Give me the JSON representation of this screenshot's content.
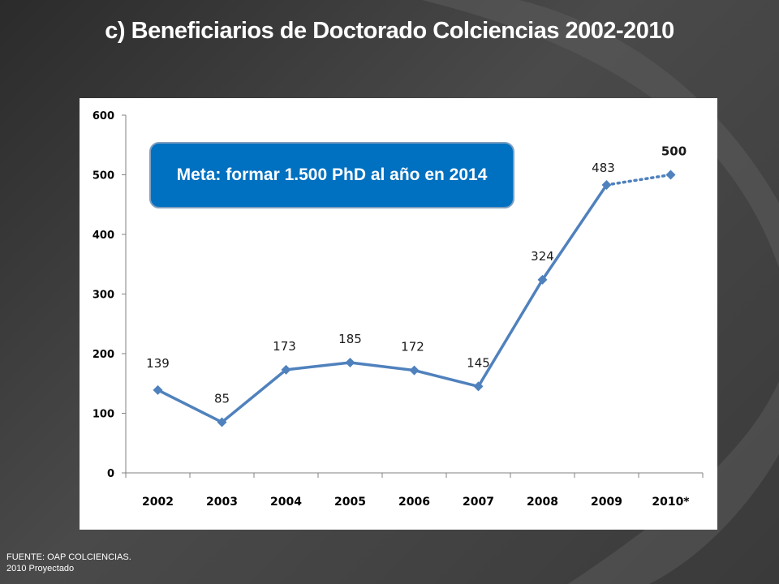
{
  "slide": {
    "title": "c) Beneficiarios de Doctorado Colciencias 2002-2010",
    "callout": "Meta: formar 1.500 PhD al año en 2014",
    "source_line1": "FUENTE: OAP COLCIENCIAS.",
    "source_line2": "2010 Proyectado"
  },
  "chart_data": {
    "type": "line",
    "categories": [
      "2002",
      "2003",
      "2004",
      "2005",
      "2006",
      "2007",
      "2008",
      "2009",
      "2010*"
    ],
    "series": [
      {
        "values": [
          139,
          85,
          173,
          185,
          172,
          145,
          324,
          483,
          500
        ],
        "data_labels": [
          "139",
          "85",
          "173",
          "185",
          "172",
          "145",
          "324",
          "483",
          "500"
        ],
        "color": "#4f81bd",
        "projected_from_index": 7,
        "highlight_last_label_color": "#ff0000"
      }
    ],
    "yticks": [
      "0",
      "100",
      "200",
      "300",
      "400",
      "500",
      "600"
    ],
    "ylim": [
      0,
      600
    ],
    "grid": false,
    "legend": "none"
  }
}
